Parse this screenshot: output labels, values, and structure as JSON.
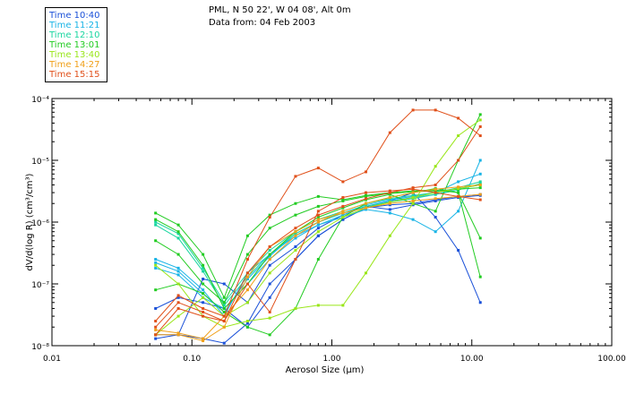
{
  "header": {
    "line1": "PML, N 50 22', W 04 08', Alt 0m",
    "line2": "Data from: 04 Feb 2003"
  },
  "chart_data": {
    "type": "line",
    "title": "PML, N 50 22', W 04 08', Alt 0m",
    "subtitle": "Data from: 04 Feb 2003",
    "xlabel": "Aerosol Size (μm)",
    "ylabel": "dV/d(log R) (cm³/cm³)",
    "xscale": "log",
    "yscale": "log",
    "xlim": [
      0.01,
      100
    ],
    "ylim": [
      1e-08,
      0.0001
    ],
    "x_ticks": [
      "0.01",
      "0.10",
      "1.00",
      "10.00",
      "100.00"
    ],
    "y_ticks": [
      "10⁻⁸",
      "10⁻⁷",
      "10⁻⁶",
      "10⁻⁵",
      "10⁻⁴"
    ],
    "legend_position": "top-left, outside plot",
    "x": [
      0.055,
      0.08,
      0.12,
      0.17,
      0.25,
      0.36,
      0.55,
      0.8,
      1.2,
      1.75,
      2.6,
      3.8,
      5.5,
      8.0,
      11.5
    ],
    "series": [
      {
        "name": "Time 10:40",
        "color": "#1a50d8",
        "values": [
          1.3e-08,
          1.5e-08,
          1.3e-08,
          1.1e-08,
          2.3e-08,
          1e-07,
          2.5e-07,
          6e-07,
          1.1e-06,
          1.7e-06,
          1.9e-06,
          2e-06,
          2.3e-06,
          2.6e-06,
          2.8e-06
        ]
      },
      {
        "name": "Time 10:40",
        "color": "#1a50d8",
        "values": [
          4e-08,
          6e-08,
          5e-08,
          4e-08,
          2e-08,
          6e-08,
          2.5e-07,
          6e-07,
          1.1e-06,
          1.7e-06,
          2.2e-06,
          3e-06,
          1.2e-06,
          3.5e-07,
          5e-08
        ]
      },
      {
        "name": "Time 10:40",
        "color": "#1a50d8",
        "values": [
          1.5e-08,
          1.5e-08,
          1.2e-07,
          1e-07,
          5e-08,
          2e-07,
          4e-07,
          8e-07,
          1.3e-06,
          1.8e-06,
          1.6e-06,
          1.9e-06,
          2.2e-06,
          2.5e-06,
          2.7e-06
        ]
      },
      {
        "name": "Time 11:21",
        "color": "#19b4e6",
        "values": [
          2.5e-07,
          1.8e-07,
          8e-08,
          3e-08,
          1.5e-07,
          3e-07,
          6e-07,
          9e-07,
          1.3e-06,
          1.8e-06,
          2.2e-06,
          2.5e-06,
          2.8e-06,
          3.5e-06,
          4e-06
        ]
      },
      {
        "name": "Time 11:21",
        "color": "#19b4e6",
        "values": [
          1.8e-07,
          1.4e-07,
          6e-08,
          4e-08,
          1e-07,
          2.5e-07,
          5.5e-07,
          9e-07,
          1.2e-06,
          1.6e-06,
          1.4e-06,
          1.1e-06,
          7e-07,
          1.5e-06,
          1e-05
        ]
      },
      {
        "name": "Time 11:21",
        "color": "#19b4e6",
        "values": [
          2.2e-07,
          1.6e-07,
          7e-08,
          3.5e-08,
          1.2e-07,
          2.8e-07,
          6.5e-07,
          1e-06,
          1.4e-06,
          1.9e-06,
          2.3e-06,
          2.6e-06,
          3e-06,
          4.5e-06,
          6e-06
        ]
      },
      {
        "name": "Time 12:10",
        "color": "#19d6a0",
        "values": [
          1e-06,
          6.5e-07,
          1.8e-07,
          5e-08,
          1.5e-07,
          3.5e-07,
          7e-07,
          1.1e-06,
          1.5e-06,
          2e-06,
          2.4e-06,
          2.7e-06,
          3e-06,
          3.6e-06,
          4.5e-06
        ]
      },
      {
        "name": "Time 12:10",
        "color": "#19d6a0",
        "values": [
          9e-07,
          5.5e-07,
          1.6e-07,
          4.5e-08,
          1.3e-07,
          3e-07,
          6.5e-07,
          1e-06,
          1.4e-06,
          1.8e-06,
          2.1e-06,
          2.4e-06,
          2.8e-06,
          3.3e-06,
          4.2e-06
        ]
      },
      {
        "name": "Time 13:01",
        "color": "#22cc22",
        "values": [
          1.4e-06,
          9e-07,
          3e-07,
          6e-08,
          6e-07,
          1.3e-06,
          2e-06,
          2.6e-06,
          2.3e-06,
          2.7e-06,
          3e-06,
          3.2e-06,
          3.3e-06,
          3e-06,
          5.5e-07
        ]
      },
      {
        "name": "Time 13:01",
        "color": "#22cc22",
        "values": [
          5e-07,
          3e-07,
          1e-07,
          5e-08,
          3e-07,
          8e-07,
          1.3e-06,
          1.8e-06,
          2.2e-06,
          2.6e-06,
          2.9e-06,
          3.1e-06,
          3.2e-06,
          3.4e-06,
          3.6e-06
        ]
      },
      {
        "name": "Time 13:01",
        "color": "#22cc22",
        "values": [
          8e-08,
          1e-07,
          7e-08,
          3.5e-08,
          2e-08,
          1.5e-08,
          4e-08,
          2.5e-07,
          1.2e-06,
          2e-06,
          2.5e-06,
          3e-06,
          3.5e-06,
          3e-06,
          1.3e-07
        ]
      },
      {
        "name": "Time 13:01",
        "color": "#22cc22",
        "values": [
          1.1e-06,
          7e-07,
          2e-07,
          4e-08,
          1e-07,
          3e-07,
          7e-07,
          1.2e-06,
          1.7e-06,
          2.3e-06,
          2.8e-06,
          2e-06,
          1.5e-06,
          1e-05,
          5.5e-05
        ]
      },
      {
        "name": "Time 13:40",
        "color": "#99e619",
        "values": [
          1.5e-08,
          3e-08,
          6e-08,
          3e-08,
          5e-08,
          1.5e-07,
          3.5e-07,
          7e-07,
          1.2e-06,
          1.7e-06,
          2.1e-06,
          2.5e-06,
          3e-06,
          3.5e-06,
          4e-06
        ]
      },
      {
        "name": "Time 13:40",
        "color": "#99e619",
        "values": [
          2e-07,
          1e-07,
          3e-08,
          2e-08,
          2.5e-08,
          2.8e-08,
          4e-08,
          4.5e-08,
          4.5e-08,
          1.5e-07,
          6e-07,
          2e-06,
          8e-06,
          2.5e-05,
          4.5e-05
        ]
      },
      {
        "name": "Time 14:27",
        "color": "#f0a019",
        "values": [
          1.5e-08,
          1.5e-08,
          1.2e-08,
          2e-08,
          1.3e-07,
          4e-07,
          7e-07,
          1.1e-06,
          1.4e-06,
          1.7e-06,
          2e-06,
          2.2e-06,
          2.4e-06,
          2.6e-06,
          2.8e-06
        ]
      },
      {
        "name": "Time 14:27",
        "color": "#f0a019",
        "values": [
          1.8e-08,
          1.6e-08,
          1.3e-08,
          3e-08,
          8e-08,
          2.5e-07,
          6e-07,
          1e-06,
          1.5e-06,
          2e-06,
          2.5e-06,
          3e-06,
          3.4e-06,
          3.7e-06,
          4e-06
        ]
      },
      {
        "name": "Time 15:15",
        "color": "#e0501a",
        "values": [
          2.5e-08,
          6.5e-08,
          4e-08,
          3e-08,
          2.5e-07,
          1.2e-06,
          5.5e-06,
          7.5e-06,
          4.5e-06,
          6.5e-06,
          2.8e-05,
          6.5e-05,
          6.5e-05,
          4.8e-05,
          2.5e-05
        ]
      },
      {
        "name": "Time 15:15",
        "color": "#e0501a",
        "values": [
          2e-08,
          5e-08,
          3.5e-08,
          2.5e-08,
          1e-07,
          3.5e-08,
          2.5e-07,
          1.5e-06,
          2.5e-06,
          3e-06,
          3.2e-06,
          3.4e-06,
          3e-06,
          2.6e-06,
          2.3e-06
        ]
      },
      {
        "name": "Time 15:15",
        "color": "#e0501a",
        "values": [
          1.5e-08,
          4e-08,
          3e-08,
          2.5e-08,
          1.5e-07,
          4e-07,
          8e-07,
          1.3e-06,
          1.8e-06,
          2.4e-06,
          3e-06,
          3.6e-06,
          4e-06,
          1e-05,
          3.5e-05
        ]
      }
    ]
  },
  "legend": [
    {
      "label": "Time 10:40",
      "color": "#1a50d8"
    },
    {
      "label": "Time 11:21",
      "color": "#19b4e6"
    },
    {
      "label": "Time 12:10",
      "color": "#19d6a0"
    },
    {
      "label": "Time 13:01",
      "color": "#22cc22"
    },
    {
      "label": "Time 13:40",
      "color": "#99e619"
    },
    {
      "label": "Time 14:27",
      "color": "#f0a019"
    },
    {
      "label": "Time 15:15",
      "color": "#e0501a"
    }
  ]
}
